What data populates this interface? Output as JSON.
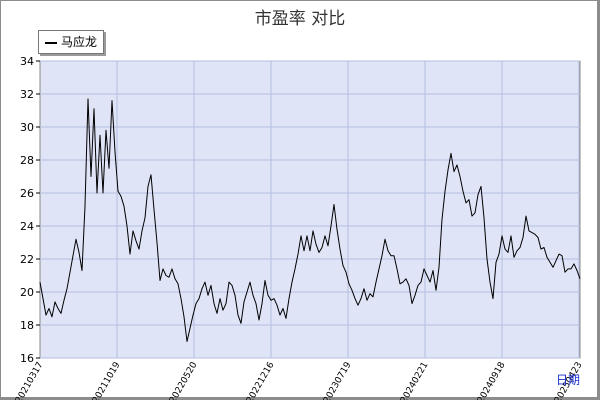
{
  "chart_data": {
    "type": "line",
    "title": "市盈率  对比",
    "x_unit_label": "日期",
    "ylim": [
      16,
      34
    ],
    "y_ticks": [
      16,
      18,
      20,
      22,
      24,
      26,
      28,
      30,
      32,
      34
    ],
    "x_tick_labels": [
      "20210317",
      "20211019",
      "20220520",
      "20221216",
      "20230719",
      "20240221",
      "20240918",
      "20250423"
    ],
    "grid": true,
    "legend_position": "top-left",
    "colors": {
      "plot_bg": "#dfe4f7",
      "grid": "#b4bede",
      "line": "#000000",
      "x_unit": "#1a2fd0"
    },
    "series": [
      {
        "name": "马应龙",
        "values": [
          20.6,
          19.6,
          18.6,
          19.0,
          18.5,
          19.4,
          19.0,
          18.7,
          19.5,
          20.2,
          21.2,
          22.2,
          23.2,
          22.4,
          21.3,
          25.2,
          31.7,
          27.0,
          31.1,
          26.0,
          29.5,
          26.0,
          29.8,
          27.5,
          31.6,
          28.5,
          26.1,
          25.8,
          25.2,
          24.0,
          22.3,
          23.7,
          23.1,
          22.6,
          23.7,
          24.5,
          26.4,
          27.1,
          25.0,
          23.0,
          20.7,
          21.4,
          21.0,
          20.9,
          21.4,
          20.8,
          20.5,
          19.6,
          18.5,
          17.0,
          17.8,
          18.6,
          19.3,
          19.6,
          20.2,
          20.6,
          19.8,
          20.4,
          19.3,
          18.7,
          19.6,
          18.9,
          19.3,
          20.6,
          20.4,
          19.8,
          18.6,
          18.1,
          19.4,
          20.0,
          20.6,
          19.8,
          19.3,
          18.3,
          19.3,
          20.7,
          19.8,
          19.5,
          19.6,
          19.2,
          18.6,
          19.0,
          18.4,
          19.6,
          20.6,
          21.4,
          22.3,
          23.4,
          22.5,
          23.4,
          22.5,
          23.7,
          22.9,
          22.4,
          22.7,
          23.4,
          22.8,
          24.0,
          25.3,
          23.8,
          22.6,
          21.6,
          21.2,
          20.5,
          20.1,
          19.6,
          19.2,
          19.6,
          20.2,
          19.5,
          19.9,
          19.7,
          20.6,
          21.4,
          22.2,
          23.2,
          22.5,
          22.2,
          22.2,
          21.4,
          20.5,
          20.6,
          20.8,
          20.4,
          19.3,
          19.8,
          20.4,
          20.6,
          21.4,
          21.0,
          20.6,
          21.3,
          20.1,
          21.5,
          24.4,
          26.1,
          27.4,
          28.4,
          27.3,
          27.7,
          27.0,
          26.1,
          25.4,
          25.6,
          24.6,
          24.8,
          25.9,
          26.4,
          24.5,
          22.0,
          20.6,
          19.6,
          21.8,
          22.3,
          23.4,
          22.6,
          22.4,
          23.4,
          22.1,
          22.5,
          22.7,
          23.3,
          24.6,
          23.7,
          23.6,
          23.5,
          23.3,
          22.6,
          22.7,
          22.1,
          21.8,
          21.5,
          21.9,
          22.3,
          22.2,
          21.2,
          21.4,
          21.4,
          21.7,
          21.3,
          20.8
        ]
      }
    ]
  }
}
